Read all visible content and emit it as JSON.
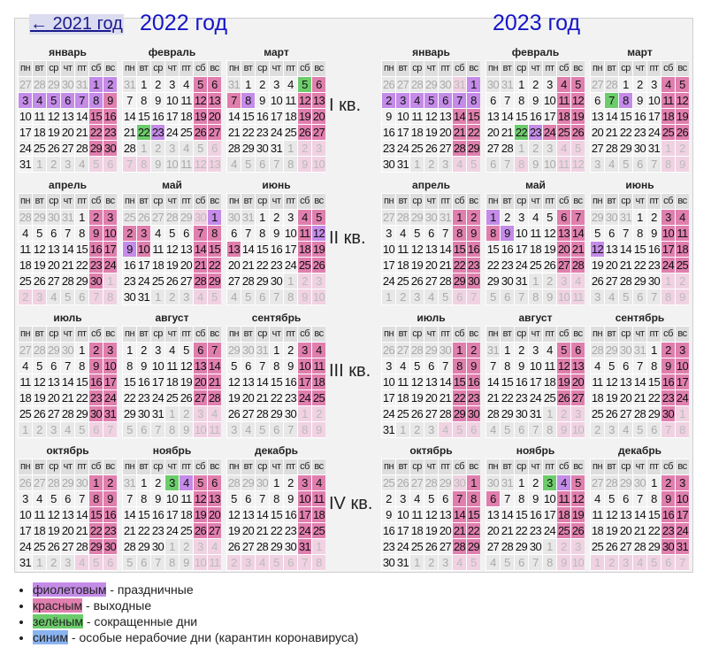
{
  "nav": {
    "prev_year_link": "← 2021 год"
  },
  "weekday_headers": [
    "пн",
    "вт",
    "ср",
    "чт",
    "пт",
    "сб",
    "вс"
  ],
  "quarters": [
    "I кв.",
    "II кв.",
    "III кв.",
    "IV кв."
  ],
  "colors": {
    "holiday": "#c48be8",
    "weekend": "#e07fae",
    "short_day": "#6ccc6c",
    "special_nonworking": "#8ab4f0"
  },
  "years": [
    {
      "title": "2022 год",
      "months": [
        {
          "name": "январь",
          "rows": [
            "27o 28o 29o 30o 31o 1h 2h",
            "3h 4h 5h 6h 7h 8h 9w",
            "10 11 12 13 14 15w 16w",
            "17 18 19 20 21 22w 23w",
            "24 25 26 27 28 29w 30w",
            "31 1o 2o 3o 4o 5p 6p"
          ]
        },
        {
          "name": "февраль",
          "rows": [
            "31o 1 2 3 4 5w 6w",
            "7 8 9 10 11 12w 13w",
            "14 15 16 17 18 19w 20w",
            "21 22s 23h 24 25 26w 27w",
            "28 1o 2o 3o 4o 5o 6p",
            "7p 8p 9o 10o 11o 12p 13p"
          ]
        },
        {
          "name": "март",
          "rows": [
            "31o 1 2 3 4 5s 6w",
            "7w 8h 9 10 11 12w 13w",
            "14 15 16 17 18 19w 20w",
            "21 22 23 24 25 26w 27w",
            "28 29 30 31 1o 2p 3p",
            "4o 5o 6o 7o 8o 9p 10p"
          ]
        },
        {
          "name": "апрель",
          "rows": [
            "28o 29o 30o 31o 1 2w 3w",
            "4 5 6 7 8 9w 10w",
            "11 12 13 14 15 16w 17w",
            "18 19 20 21 22 23w 24w",
            "25 26 27 28 29 30w 1p",
            "2p 3p 4o 5o 6o 7p 8p"
          ]
        },
        {
          "name": "май",
          "rows": [
            "25o 26o 27o 28o 29o 30p 1h",
            "2w 3w 4 5 6 7w 8w",
            "9h 10w 11 12 13 14w 15w",
            "16 17 18 19 20 21w 22w",
            "23 24 25 26 27 28w 29w",
            "30 31 1o 2o 3o 4p 5p"
          ]
        },
        {
          "name": "июнь",
          "rows": [
            "30o 31o 1 2 3 4w 5w",
            "6 7 8 9 10 11w 12h",
            "13w 14 15 16 17 18w 19w",
            "20 21 22 23 24 25w 26w",
            "27 28 29 30 1o 2p 3p",
            "4o 5o 6o 7o 8o 9p 10p"
          ]
        },
        {
          "name": "июль",
          "rows": [
            "27o 28o 29o 30o 1 2w 3w",
            "4 5 6 7 8 9w 10w",
            "11 12 13 14 15 16w 17w",
            "18 19 20 21 22 23w 24w",
            "25 26 27 28 29 30w 31w",
            "1o 2o 3o 4o 5o 6p 7p"
          ]
        },
        {
          "name": "август",
          "rows": [
            "1 2 3 4 5 6w 7w",
            "8 9 10 11 12 13w 14w",
            "15 16 17 18 19 20w 21w",
            "22 23 24 25 26 27w 28w",
            "29 30 31 1o 2o 3p 4p",
            "5o 6o 7o 8o 9o 10p 11p"
          ]
        },
        {
          "name": "сентябрь",
          "rows": [
            "29o 30o 31o 1 2 3w 4w",
            "5 6 7 8 9 10w 11w",
            "12 13 14 15 16 17w 18w",
            "19 20 21 22 23 24w 25w",
            "26 27 28 29 30 1p 2p",
            "3o 4o 5o 6o 7o 8p 9p"
          ]
        },
        {
          "name": "октябрь",
          "rows": [
            "26o 27o 28o 29o 30o 1w 2w",
            "3 4 5 6 7 8w 9w",
            "10 11 12 13 14 15w 16w",
            "17 18 19 20 21 22w 23w",
            "24 25 26 27 28 29w 30w",
            "31 1o 2o 3o 4p 5p 6p"
          ]
        },
        {
          "name": "ноябрь",
          "rows": [
            "31o 1 2 3s 4h 5w 6w",
            "7 8 9 10 11 12w 13w",
            "14 15 16 17 18 19w 20w",
            "21 22 23 24 25 26w 27w",
            "28 29 30 1o 2o 3p 4p",
            "5o 6o 7o 8o 9o 10p 11p"
          ]
        },
        {
          "name": "декабрь",
          "rows": [
            "28o 29o 30o 1 2 3w 4w",
            "5 6 7 8 9 10w 11w",
            "12 13 14 15 16 17w 18w",
            "19 20 21 22 23 24w 25w",
            "26 27 28 29 30 31w 1p",
            "2p 3p 4p 5p 6p 7p 8p"
          ]
        }
      ]
    },
    {
      "title": "2023 год",
      "months": [
        {
          "name": "январь",
          "rows": [
            "26o 27o 28o 29o 30o 31p 1h",
            "2h 3h 4h 5h 6h 7h 8h",
            "9 10 11 12 13 14w 15w",
            "16 17 18 19 20 21w 22w",
            "23 24 25 26 27 28w 29w",
            "30 31 1o 2o 3o 4p 5p"
          ]
        },
        {
          "name": "февраль",
          "rows": [
            "30o 31o 1 2 3 4w 5w",
            "6 7 8 9 10 11w 12w",
            "13 14 15 16 17 18w 19w",
            "20 21 22s 23h 24w 25w 26w",
            "27 28 1o 2o 3o 4p 5p",
            "6o 7o 8p 9o 10o 11p 12p"
          ]
        },
        {
          "name": "март",
          "rows": [
            "27o 28o 1 2 3 4w 5w",
            "6 7s 8h 9 10 11w 12w",
            "13 14 15 16 17 18w 19w",
            "20 21 22 23 24 25w 26w",
            "27 28 29 30 31 1p 2p",
            "3o 4o 5o 6o 7o 8p 9p"
          ]
        },
        {
          "name": "апрель",
          "rows": [
            "27o 28o 29o 30o 31o 1w 2w",
            "3 4 5 6 7 8w 9w",
            "10 11 12 13 14 15w 16w",
            "17 18 19 20 21 22w 23w",
            "24 25 26 27 28 29w 30w",
            "1o 2o 3o 4o 5o 6p 7p"
          ]
        },
        {
          "name": "май",
          "rows": [
            "1h 2 3 4 5 6w 7w",
            "8w 9h 10 11 12 13w 14w",
            "15 16 17 18 19 20w 21w",
            "22 23 24 25 26 27w 28w",
            "29 30 31 1o 2o 3p 4p",
            "5o 6o 7o 8o 9o 10p 11p"
          ]
        },
        {
          "name": "июнь",
          "rows": [
            "29o 30o 31o 1 2 3w 4w",
            "5 6 7 8 9 10w 11w",
            "12h 13 14 15 16 17w 18w",
            "19 20 21 22 23 24w 25w",
            "26 27 28 29 30 1p 2p",
            "3o 4o 5o 6o 7o 8p 9p"
          ]
        },
        {
          "name": "июль",
          "rows": [
            "26o 27o 28o 29o 30o 1w 2w",
            "3 4 5 6 7 8w 9w",
            "10 11 12 13 14 15w 16w",
            "17 18 19 20 21 22w 23w",
            "24 25 26 27 28 29w 30w",
            "31 1o 2o 3o 4p 5p 6p"
          ]
        },
        {
          "name": "август",
          "rows": [
            "31o 1 2 3 4 5w 6w",
            "7 8 9 10 11 12w 13w",
            "14 15 16 17 18 19w 20w",
            "21 22 23 24 25 26w 27w",
            "28 29 30 31 1o 2p 3p",
            "4o 5o 6o 7o 8o 9p 10p"
          ]
        },
        {
          "name": "сентябрь",
          "rows": [
            "28o 29o 30o 31o 1 2w 3w",
            "4 5 6 7 8 9w 10w",
            "11 12 13 14 15 16w 17w",
            "18 19 20 21 22 23w 24w",
            "25 26 27 28 29 30w 1p",
            "2o 3o 4o 5o 6o 7p 8p"
          ]
        },
        {
          "name": "октябрь",
          "rows": [
            "25o 26o 27o 28o 29o 30p 1w",
            "2 3 4 5 6 7w 8w",
            "9 10 11 12 13 14w 15w",
            "16 17 18 19 20 21w 22w",
            "23 24 25 26 27 28w 29w",
            "30 31 1o 2o 3o 4p 5p"
          ]
        },
        {
          "name": "ноябрь",
          "rows": [
            "30o 31o 1 2 3s 4h 5w",
            "6w 7 8 9 10 11w 12w",
            "13 14 15 16 17 18w 19w",
            "20 21 22 23 24 25w 26w",
            "27 28 29 30 1o 2p 3p",
            "4o 5o 6o 7o 8o 9p 10p"
          ]
        },
        {
          "name": "декабрь",
          "rows": [
            "27o 28o 29o 30o 1 2w 3w",
            "4 5 6 7 8 9w 10w",
            "11 12 13 14 15 16w 17w",
            "18 19 20 21 22 23w 24w",
            "25 26 27 28 29 30w 31w",
            "1p 2p 3p 4p 5p 6p 7p"
          ]
        }
      ]
    }
  ],
  "legend": [
    {
      "key": "фиолетовым",
      "text": " - праздничные",
      "color": "purple"
    },
    {
      "key": "красным",
      "text": " - выходные",
      "color": "pink"
    },
    {
      "key": "зелёным",
      "text": " - сокращенные дни",
      "color": "green"
    },
    {
      "key": "синим",
      "text": " - особые нерабочие дни (карантин коронавируса)",
      "color": "blue"
    }
  ]
}
